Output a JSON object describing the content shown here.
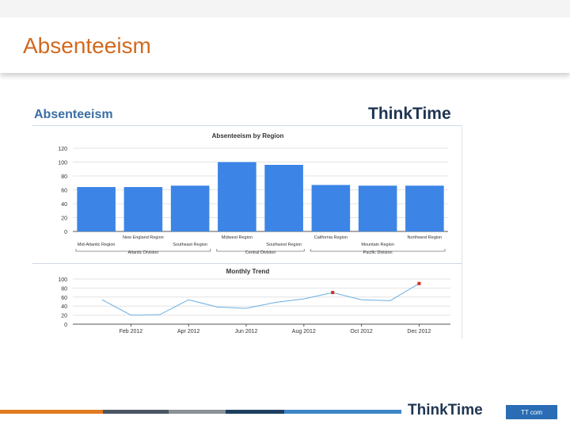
{
  "slide": {
    "title": "Absenteeism"
  },
  "dashboard": {
    "title": "Absenteeism",
    "logo": "ThinkTime"
  },
  "footer": {
    "logo": "ThinkTime",
    "badge_text": "TT com"
  },
  "colors": {
    "title_orange": "#d2691e",
    "bar_blue": "#3c85e6",
    "line_blue": "#6aaee0",
    "marker_red": "#d9281e",
    "footer_segments": [
      "#e07b20",
      "#4a5663",
      "#8a9197",
      "#1d3f60",
      "#3d86c6"
    ]
  },
  "chart_data": [
    {
      "type": "bar",
      "title": "Absenteeism by Region",
      "categories": [
        "Mid-Atlantic Region",
        "New England Region",
        "Southeast Region",
        "Midwest Region",
        "Southwest Region",
        "California Region",
        "Mountain Region",
        "Northwest Region"
      ],
      "values": [
        64,
        64,
        66,
        100,
        96,
        67,
        66,
        66
      ],
      "groups": [
        {
          "name": "Atlantic Division",
          "categories": [
            "Mid-Atlantic Region",
            "New England Region",
            "Southeast Region"
          ]
        },
        {
          "name": "Central Division",
          "categories": [
            "Midwest Region",
            "Southwest Region"
          ]
        },
        {
          "name": "Pacific Division",
          "categories": [
            "California Region",
            "Mountain Region",
            "Northwest Region"
          ]
        }
      ],
      "ylim": [
        0,
        120
      ],
      "yticks": [
        "0",
        "20",
        "40",
        "60",
        "80",
        "100",
        "120"
      ],
      "grid": true
    },
    {
      "type": "line",
      "title": "Monthly Trend",
      "x": [
        "Jan 2012",
        "Feb 2012",
        "Mar 2012",
        "Apr 2012",
        "May 2012",
        "Jun 2012",
        "Jul 2012",
        "Aug 2012",
        "Sep 2012",
        "Oct 2012",
        "Nov 2012",
        "Dec 2012"
      ],
      "values": [
        54,
        20,
        21,
        54,
        38,
        35,
        48,
        56,
        70,
        54,
        52,
        90
      ],
      "highlighted": [
        "Sep 2012",
        "Dec 2012"
      ],
      "xtick_labels": [
        "Feb 2012",
        "Apr 2012",
        "Jun 2012",
        "Aug 2012",
        "Oct 2012",
        "Dec 2012"
      ],
      "ylim": [
        0,
        100
      ],
      "yticks": [
        "0",
        "20",
        "40",
        "60",
        "80",
        "100"
      ],
      "grid": true
    }
  ]
}
